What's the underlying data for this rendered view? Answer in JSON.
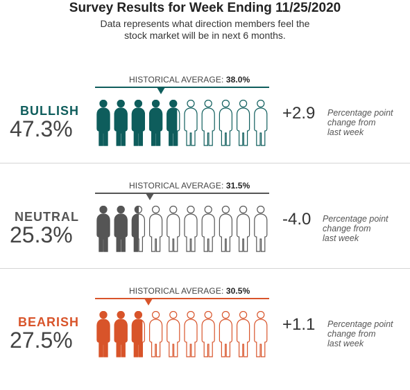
{
  "header": {
    "title": "Survey Results for Week Ending 11/25/2020",
    "subtitle_line1": "Data represents what direction members feel the",
    "subtitle_line2": "stock market will be in next 6 months."
  },
  "colors": {
    "bullish": "#0e5d5c",
    "neutral": "#555555",
    "bearish": "#d8542a"
  },
  "chart_data": {
    "type": "pictograph",
    "units_per_icon_percent": 10,
    "icons_total": 10,
    "rows": [
      {
        "key": "bullish",
        "label": "BULLISH",
        "value": 47.3,
        "value_text": "47.3%",
        "historical_label": "HISTORICAL AVERAGE:",
        "historical_average": 38.0,
        "historical_text": "38.0%",
        "change": 2.9,
        "change_text": "+2.9",
        "change_note": [
          "Percentage point",
          "change from",
          "last week"
        ]
      },
      {
        "key": "neutral",
        "label": "NEUTRAL",
        "value": 25.3,
        "value_text": "25.3%",
        "historical_label": "HISTORICAL AVERAGE:",
        "historical_average": 31.5,
        "historical_text": "31.5%",
        "change": -4.0,
        "change_text": "-4.0",
        "change_note": [
          "Percentage point",
          "change from",
          "last week"
        ]
      },
      {
        "key": "bearish",
        "label": "BEARISH",
        "value": 27.5,
        "value_text": "27.5%",
        "historical_label": "HISTORICAL AVERAGE:",
        "historical_average": 30.5,
        "historical_text": "30.5%",
        "change": 1.1,
        "change_text": "+1.1",
        "change_note": [
          "Percentage point",
          "change from",
          "last week"
        ]
      }
    ]
  }
}
